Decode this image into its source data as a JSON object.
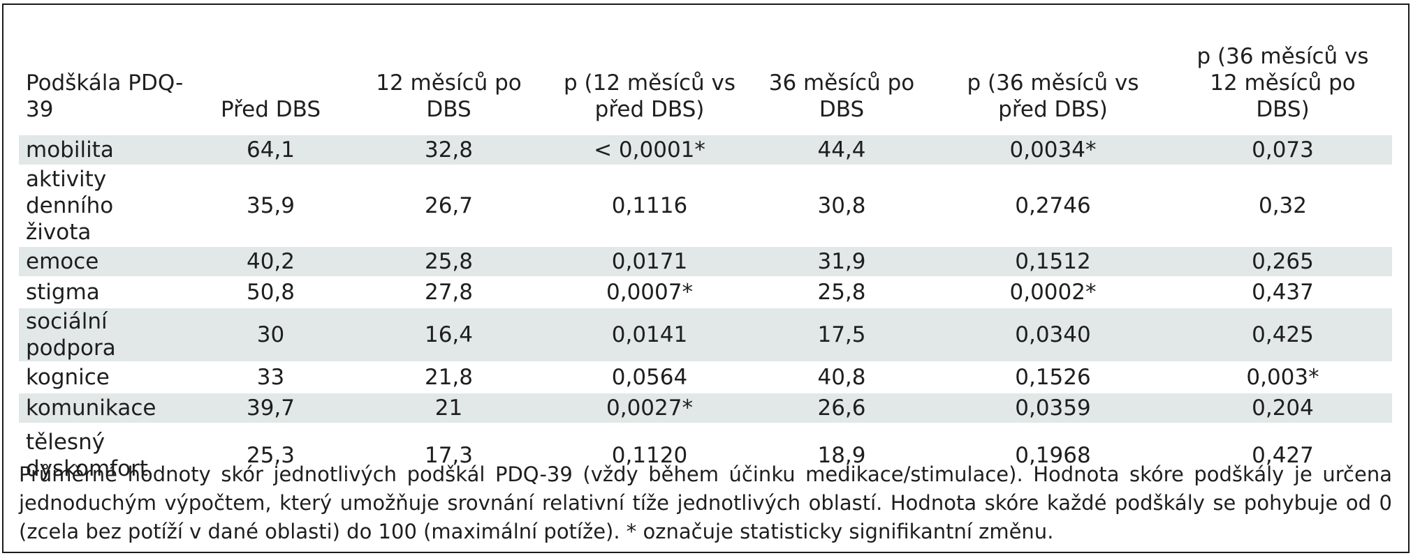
{
  "table": {
    "headers": [
      "Podškála PDQ-39",
      "Před DBS",
      "12 měsíců po DBS",
      "p (12 měsíců vs před DBS)",
      "36 měsíců po DBS",
      "p (36 měsíců vs před DBS)",
      "p (36 měsíců vs 12 měsíců po DBS)"
    ],
    "rows": [
      [
        "mobilita",
        "64,1",
        "32,8",
        "< 0,0001*",
        "44,4",
        "0,0034*",
        "0,073"
      ],
      [
        "aktivity denního života",
        "35,9",
        "26,7",
        "0,1116",
        "30,8",
        "0,2746",
        "0,32"
      ],
      [
        "emoce",
        "40,2",
        "25,8",
        "0,0171",
        "31,9",
        "0,1512",
        "0,265"
      ],
      [
        "stigma",
        "50,8",
        "27,8",
        "0,0007*",
        "25,8",
        "0,0002*",
        "0,437"
      ],
      [
        "sociální podpora",
        "30",
        "16,4",
        "0,0141",
        "17,5",
        "0,0340",
        "0,425"
      ],
      [
        "kognice",
        "33",
        "21,8",
        "0,0564",
        "40,8",
        "0,1526",
        "0,003*"
      ],
      [
        "komunikace",
        "39,7",
        "21",
        "0,0027*",
        "26,6",
        "0,0359",
        "0,204"
      ],
      [
        "tělesný dyskomfort",
        "25,3",
        "17,3",
        "0,1120",
        "18,9",
        "0,1968",
        "0,427"
      ]
    ]
  },
  "caption": "Průměrné hodnoty skór jednotlivých podškál PDQ-39 (vždy během účinku medikace/stimulace). Hodnota skóre podškály je určena jednoduchým výpočtem, který umožňuje srovnání relativní tíže jednotlivých oblastí. Hodnota skóre každé podškály se pohybuje od 0 (zcela bez potíží v dané oblasti) do 100 (maximální potíže). * označuje statisticky signifikantní změnu.",
  "colors": {
    "row_shade": "#e1e8e7",
    "border": "#1a1a1a",
    "text": "#1e1e1e"
  }
}
